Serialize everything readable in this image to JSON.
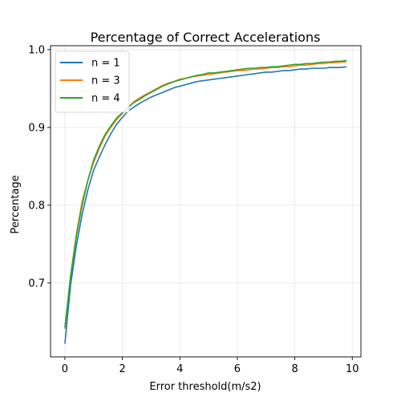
{
  "chart_data": {
    "type": "line",
    "title": "Percentage of Correct Accelerations",
    "xlabel": "Error threshold(m/s2)",
    "ylabel": "Percentage",
    "xlim": [
      -0.5,
      10.3
    ],
    "ylim": [
      0.605,
      1.005
    ],
    "xticks": [
      0,
      2,
      4,
      6,
      8,
      10
    ],
    "xtick_labels": [
      "0",
      "2",
      "4",
      "6",
      "8",
      "10"
    ],
    "yticks": [
      0.7,
      0.8,
      0.9,
      1.0
    ],
    "ytick_labels": [
      "0.7",
      "0.8",
      "0.9",
      "1.0"
    ],
    "grid": true,
    "legend_position": "top-left",
    "x": [
      0,
      0.2,
      0.4,
      0.6,
      0.8,
      1.0,
      1.2,
      1.4,
      1.6,
      1.8,
      2.0,
      2.2,
      2.4,
      2.6,
      2.8,
      3.0,
      3.2,
      3.4,
      3.6,
      3.8,
      4.0,
      4.2,
      4.4,
      4.6,
      4.8,
      5.0,
      5.2,
      5.4,
      5.6,
      5.8,
      6.0,
      6.2,
      6.4,
      6.6,
      6.8,
      7.0,
      7.2,
      7.4,
      7.6,
      7.8,
      8.0,
      8.2,
      8.4,
      8.6,
      8.8,
      9.0,
      9.2,
      9.4,
      9.6,
      9.8
    ],
    "series": [
      {
        "name": "n = 1",
        "color": "#1f77b4",
        "values": [
          0.622,
          0.698,
          0.748,
          0.788,
          0.82,
          0.845,
          0.862,
          0.878,
          0.892,
          0.904,
          0.913,
          0.921,
          0.926,
          0.931,
          0.935,
          0.939,
          0.942,
          0.945,
          0.948,
          0.951,
          0.953,
          0.955,
          0.957,
          0.959,
          0.96,
          0.961,
          0.962,
          0.963,
          0.964,
          0.965,
          0.966,
          0.967,
          0.968,
          0.969,
          0.97,
          0.971,
          0.971,
          0.972,
          0.973,
          0.973,
          0.974,
          0.975,
          0.975,
          0.976,
          0.976,
          0.976,
          0.977,
          0.977,
          0.977,
          0.978
        ]
      },
      {
        "name": "n = 3",
        "color": "#ff7f0e",
        "values": [
          0.641,
          0.71,
          0.763,
          0.805,
          0.832,
          0.855,
          0.873,
          0.889,
          0.9,
          0.91,
          0.918,
          0.925,
          0.933,
          0.938,
          0.942,
          0.946,
          0.95,
          0.954,
          0.957,
          0.959,
          0.962,
          0.963,
          0.965,
          0.966,
          0.967,
          0.968,
          0.969,
          0.97,
          0.971,
          0.972,
          0.973,
          0.973,
          0.974,
          0.975,
          0.975,
          0.976,
          0.977,
          0.977,
          0.978,
          0.978,
          0.979,
          0.98,
          0.98,
          0.981,
          0.982,
          0.982,
          0.983,
          0.983,
          0.984,
          0.984
        ]
      },
      {
        "name": "n = 4",
        "color": "#2ca02c",
        "values": [
          0.643,
          0.709,
          0.76,
          0.8,
          0.832,
          0.858,
          0.876,
          0.891,
          0.902,
          0.912,
          0.919,
          0.926,
          0.932,
          0.936,
          0.941,
          0.945,
          0.949,
          0.953,
          0.956,
          0.959,
          0.961,
          0.963,
          0.965,
          0.967,
          0.968,
          0.97,
          0.97,
          0.971,
          0.972,
          0.973,
          0.974,
          0.975,
          0.976,
          0.976,
          0.977,
          0.977,
          0.978,
          0.978,
          0.979,
          0.98,
          0.981,
          0.981,
          0.982,
          0.982,
          0.983,
          0.984,
          0.984,
          0.985,
          0.985,
          0.986
        ]
      }
    ]
  }
}
